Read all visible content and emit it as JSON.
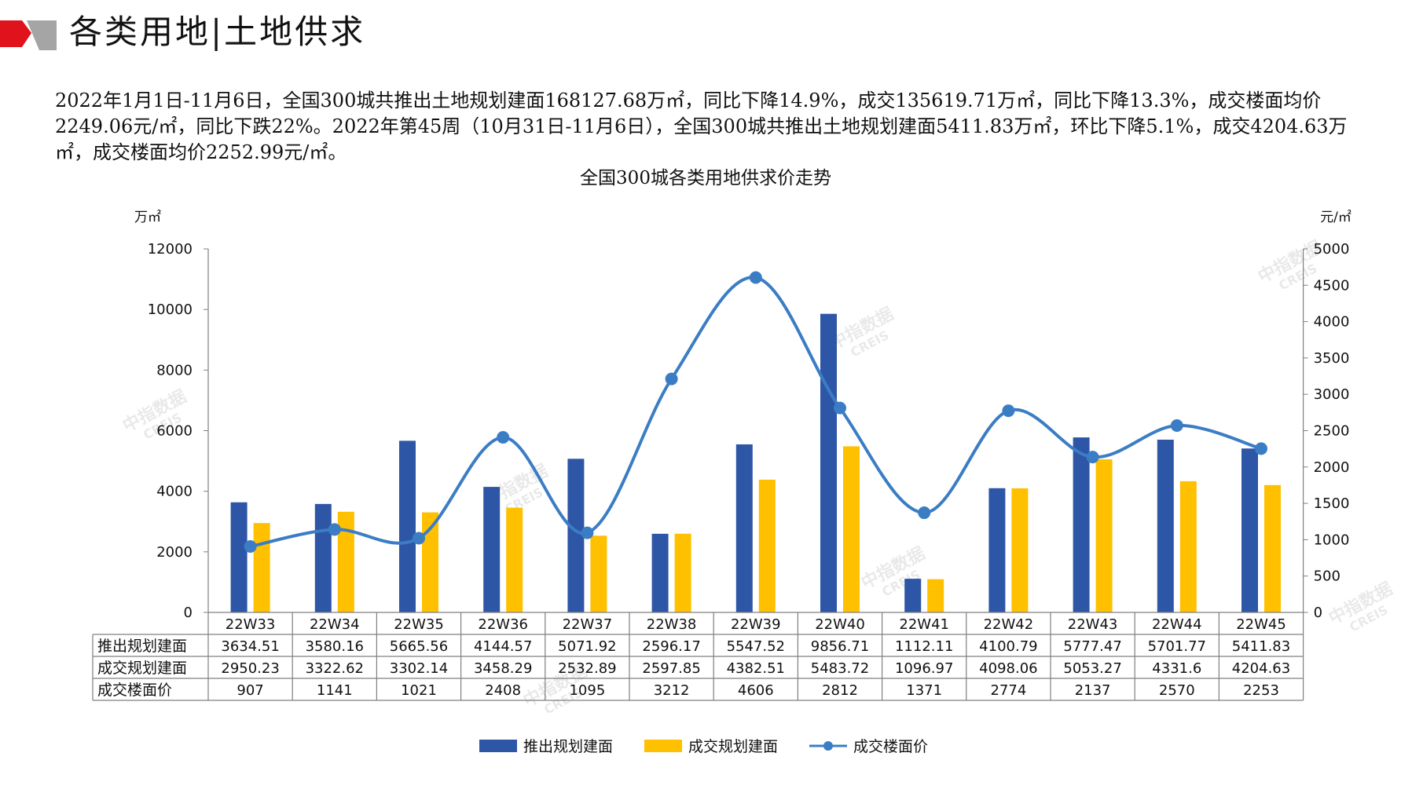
{
  "page": {
    "title": "各类用地|土地供求",
    "summary": "2022年1月1日-11月6日，全国300城共推出土地规划建面168127.68万㎡，同比下降14.9%，成交135619.71万㎡，同比下降13.3%，成交楼面均价2249.06元/㎡，同比下跌22%。2022年第45周（10月31日-11月6日），全国300城共推出土地规划建面5411.83万㎡，环比下降5.1%，成交4204.63万㎡，成交楼面均价2252.99元/㎡。",
    "watermark": {
      "cn": "中指数据",
      "en": "CREIS"
    }
  },
  "colors": {
    "bar_supply": "#2E56A6",
    "bar_deal": "#FFC000",
    "line_price": "#3B7DC4",
    "accent_red": "#E0121B",
    "accent_gray": "#7F7F7F"
  },
  "chart_data": {
    "type": "bar",
    "title": "全国300城各类用地供求价走势",
    "y_left_unit": "万㎡",
    "y_right_unit": "元/㎡",
    "ylim_left": [
      0,
      12000
    ],
    "ylim_right": [
      0,
      5000
    ],
    "yticks_left": [
      0,
      2000,
      4000,
      6000,
      8000,
      10000,
      12000
    ],
    "yticks_right": [
      0,
      500,
      1000,
      1500,
      2000,
      2500,
      3000,
      3500,
      4000,
      4500,
      5000
    ],
    "grid": false,
    "legend_position": "bottom",
    "has_data_table": true,
    "categories": [
      "22W33",
      "22W34",
      "22W35",
      "22W36",
      "22W37",
      "22W38",
      "22W39",
      "22W40",
      "22W41",
      "22W42",
      "22W43",
      "22W44",
      "22W45"
    ],
    "series": [
      {
        "name": "推出规划建面",
        "type": "bar",
        "axis": "left",
        "color": "#2E56A6",
        "values": [
          3634.51,
          3580.16,
          5665.56,
          4144.57,
          5071.92,
          2596.17,
          5547.52,
          9856.71,
          1112.11,
          4100.79,
          5777.47,
          5701.77,
          5411.83
        ],
        "labels": [
          "3634.51",
          "3580.16",
          "5665.56",
          "4144.57",
          "5071.92",
          "2596.17",
          "5547.52",
          "9856.71",
          "1112.11",
          "4100.79",
          "5777.47",
          "5701.77",
          "5411.83"
        ]
      },
      {
        "name": "成交规划建面",
        "type": "bar",
        "axis": "left",
        "color": "#FFC000",
        "values": [
          2950.23,
          3322.62,
          3302.14,
          3458.29,
          2532.89,
          2597.85,
          4382.51,
          5483.72,
          1096.97,
          4098.06,
          5053.27,
          4331.6,
          4204.63
        ],
        "labels": [
          "2950.23",
          "3322.62",
          "3302.14",
          "3458.29",
          "2532.89",
          "2597.85",
          "4382.51",
          "5483.72",
          "1096.97",
          "4098.06",
          "5053.27",
          "4331.6",
          "4204.63"
        ]
      },
      {
        "name": "成交楼面价",
        "type": "line",
        "axis": "right",
        "color": "#3B7DC4",
        "values": [
          907,
          1141,
          1021,
          2408,
          1095,
          3212,
          4606,
          2812,
          1371,
          2774,
          2137,
          2570,
          2253
        ],
        "labels": [
          "907",
          "1141",
          "1021",
          "2408",
          "1095",
          "3212",
          "4606",
          "2812",
          "1371",
          "2774",
          "2137",
          "2570",
          "2253"
        ]
      }
    ]
  }
}
